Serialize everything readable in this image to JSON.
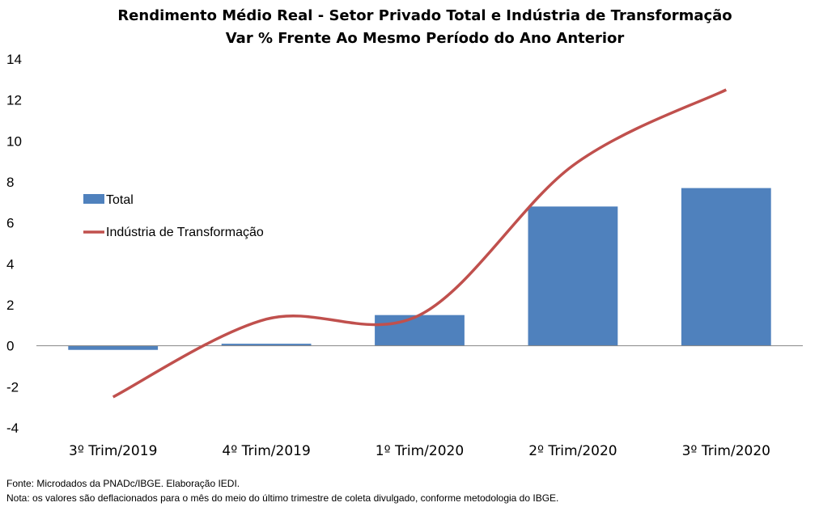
{
  "chart_data": {
    "type": "bar",
    "title": "Rendimento Médio Real - Setor Privado Total e Indústria de Transformação",
    "subtitle": "Var % Frente Ao Mesmo Período do Ano Anterior",
    "categories": [
      "3º Trim/2019",
      "4º Trim/2019",
      "1º Trim/2020",
      "2º Trim/2020",
      "3º Trim/2020"
    ],
    "series": [
      {
        "name": "Total",
        "kind": "bar",
        "color": "#4F81BD",
        "values": [
          -0.2,
          0.1,
          1.5,
          6.8,
          7.7
        ]
      },
      {
        "name": "Indústria de Transformação",
        "kind": "line",
        "color": "#C0504D",
        "values": [
          -2.5,
          1.3,
          1.5,
          8.8,
          12.5
        ]
      }
    ],
    "ylim": [
      -4,
      14
    ],
    "yticks": [
      -4,
      -2,
      0,
      2,
      4,
      6,
      8,
      10,
      12,
      14
    ],
    "xlabel": "",
    "ylabel": "",
    "grid": false,
    "legend": "left"
  },
  "notes": {
    "source": "Fonte: Microdados da PNADc/IBGE. Elaboração IEDI.",
    "nota": "Nota: os valores são deflacionados para o mês do meio do último trimestre de coleta divulgado, conforme metodologia do IBGE."
  }
}
